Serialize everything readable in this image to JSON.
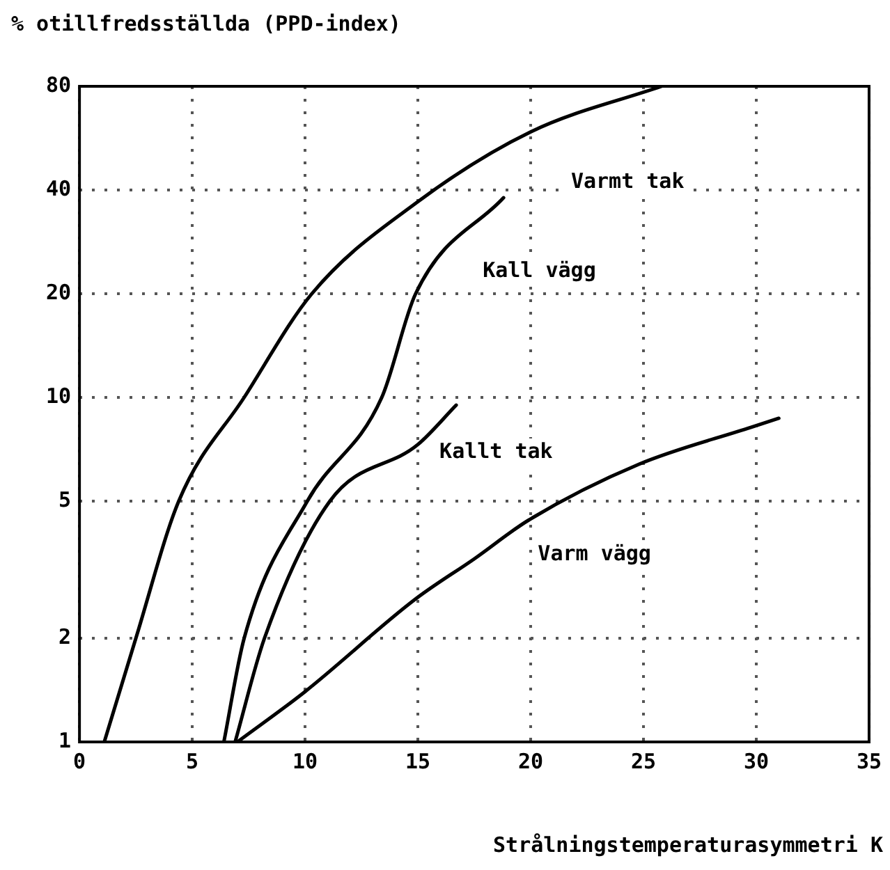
{
  "chart_data": {
    "type": "line",
    "ylabel": "% otillfredsställda (PPD-index)",
    "xlabel": "Strålningstemperaturasymmetri K",
    "xlim": [
      0,
      35
    ],
    "xticks": [
      0,
      5,
      10,
      15,
      20,
      25,
      30,
      35
    ],
    "ylim": [
      1,
      80
    ],
    "yticks": [
      1,
      2,
      5,
      10,
      20,
      40,
      80
    ],
    "log": "y",
    "grid": true,
    "legend": false,
    "marker": "none",
    "line_style": "solid",
    "series": [
      {
        "name": "Varmt tak",
        "color": "#000000",
        "x": [
          1.1,
          2.5,
          4.4,
          7.3,
          10.3,
          15,
          20,
          25.8
        ],
        "values": [
          1,
          2,
          5,
          10,
          20,
          37,
          59,
          80
        ]
      },
      {
        "name": "Kall vägg",
        "color": "#000000",
        "x": [
          6.4,
          7.3,
          10.1,
          13.4,
          14.9,
          18.8
        ],
        "values": [
          1,
          2,
          5,
          10,
          20,
          38
        ]
      },
      {
        "name": "Kallt tak",
        "color": "#000000",
        "x": [
          6.9,
          8.2,
          11.1,
          15,
          16.7
        ],
        "values": [
          1,
          2,
          5,
          7.3,
          9.5
        ]
      },
      {
        "name": "Varm vägg",
        "color": "#000000",
        "x": [
          7,
          10,
          14.9,
          17.5,
          19.9,
          24.8,
          29.8,
          31
        ],
        "values": [
          1,
          1.4,
          2.6,
          3.4,
          4.4,
          6.4,
          8.2,
          8.7
        ]
      }
    ]
  }
}
